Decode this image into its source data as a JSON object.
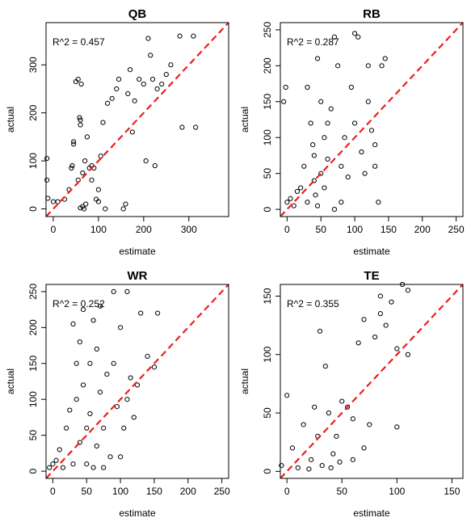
{
  "chart_data": [
    {
      "type": "scatter",
      "title": "QB",
      "xlabel": "estimate",
      "ylabel": "actual",
      "annotation": "R^2 = 0.457",
      "color": "#000000",
      "line_color": "#ee1c1c",
      "xlim": [
        -16,
        388
      ],
      "ylim": [
        -16,
        388
      ],
      "xticks": [
        0,
        100,
        200,
        300
      ],
      "yticks": [
        0,
        100,
        200,
        300
      ],
      "x": [
        -14,
        -14,
        -12,
        0,
        10,
        25,
        35,
        40,
        42,
        45,
        45,
        50,
        55,
        58,
        60,
        60,
        62,
        65,
        60,
        68,
        70,
        72,
        80,
        85,
        90,
        95,
        100,
        105,
        110,
        115,
        120,
        130,
        140,
        145,
        155,
        160,
        165,
        170,
        175,
        180,
        190,
        200,
        205,
        210,
        215,
        220,
        225,
        230,
        240,
        250,
        260,
        280,
        285,
        310,
        315,
        55,
        65,
        75,
        85,
        100
      ],
      "y": [
        105,
        60,
        22,
        15,
        15,
        20,
        40,
        85,
        90,
        135,
        140,
        265,
        270,
        190,
        185,
        175,
        260,
        5,
        2,
        0,
        100,
        10,
        85,
        90,
        85,
        20,
        15,
        110,
        180,
        0,
        220,
        230,
        250,
        270,
        0,
        10,
        240,
        290,
        160,
        225,
        270,
        260,
        100,
        355,
        320,
        270,
        90,
        250,
        260,
        280,
        300,
        360,
        170,
        360,
        170,
        60,
        75,
        150,
        60,
        40
      ]
    },
    {
      "type": "scatter",
      "title": "RB",
      "xlabel": "estimate",
      "ylabel": "actual",
      "annotation": "R^2 = 0.287",
      "color": "#000000",
      "line_color": "#ee1c1c",
      "xlim": [
        -10,
        260
      ],
      "ylim": [
        -10,
        260
      ],
      "xticks": [
        0,
        50,
        100,
        150,
        200,
        250
      ],
      "yticks": [
        0,
        50,
        100,
        150,
        200,
        250
      ],
      "x": [
        -5,
        -2,
        0,
        5,
        10,
        15,
        20,
        25,
        30,
        30,
        35,
        38,
        40,
        40,
        42,
        45,
        45,
        50,
        50,
        55,
        55,
        60,
        60,
        65,
        70,
        70,
        75,
        80,
        80,
        85,
        90,
        95,
        100,
        100,
        105,
        110,
        115,
        120,
        125,
        130,
        135,
        140,
        145,
        130,
        120
      ],
      "y": [
        150,
        170,
        10,
        15,
        5,
        25,
        30,
        60,
        10,
        170,
        120,
        90,
        75,
        40,
        20,
        5,
        210,
        150,
        50,
        100,
        30,
        70,
        120,
        140,
        0,
        240,
        200,
        60,
        10,
        100,
        45,
        170,
        245,
        120,
        240,
        80,
        50,
        200,
        110,
        60,
        10,
        200,
        210,
        90,
        150
      ]
    },
    {
      "type": "scatter",
      "title": "WR",
      "xlabel": "estimate",
      "ylabel": "actual",
      "annotation": "R^2 = 0.252",
      "color": "#000000",
      "line_color": "#ee1c1c",
      "xlim": [
        -10,
        260
      ],
      "ylim": [
        -10,
        260
      ],
      "xticks": [
        0,
        50,
        100,
        150,
        200,
        250
      ],
      "yticks": [
        0,
        50,
        100,
        150,
        200,
        250
      ],
      "x": [
        -5,
        0,
        5,
        10,
        15,
        20,
        25,
        30,
        30,
        35,
        35,
        40,
        40,
        45,
        45,
        50,
        50,
        55,
        55,
        60,
        60,
        65,
        70,
        70,
        75,
        80,
        85,
        90,
        90,
        95,
        100,
        105,
        110,
        110,
        115,
        120,
        125,
        130,
        140,
        150,
        155,
        100,
        75,
        65
      ],
      "y": [
        5,
        10,
        15,
        30,
        5,
        60,
        85,
        205,
        10,
        150,
        100,
        40,
        180,
        225,
        120,
        10,
        60,
        80,
        150,
        5,
        210,
        35,
        110,
        230,
        60,
        135,
        20,
        150,
        250,
        90,
        200,
        60,
        100,
        250,
        130,
        75,
        120,
        220,
        160,
        145,
        220,
        20,
        5,
        170
      ]
    },
    {
      "type": "scatter",
      "title": "TE",
      "xlabel": "estimate",
      "ylabel": "actual",
      "annotation": "R^2 = 0.355",
      "color": "#000000",
      "line_color": "#ee1c1c",
      "xlim": [
        -6,
        160
      ],
      "ylim": [
        -6,
        160
      ],
      "xticks": [
        0,
        50,
        100,
        150
      ],
      "yticks": [
        0,
        50,
        100,
        150
      ],
      "x": [
        -5,
        0,
        5,
        10,
        15,
        20,
        22,
        25,
        28,
        30,
        32,
        35,
        38,
        40,
        42,
        45,
        50,
        55,
        60,
        65,
        70,
        75,
        80,
        85,
        85,
        90,
        95,
        100,
        100,
        105,
        110,
        110,
        60,
        48,
        70
      ],
      "y": [
        5,
        65,
        20,
        3,
        40,
        2,
        10,
        55,
        30,
        120,
        5,
        90,
        50,
        3,
        15,
        30,
        60,
        55,
        45,
        110,
        130,
        40,
        115,
        135,
        150,
        125,
        145,
        105,
        38,
        160,
        155,
        100,
        10,
        8,
        20
      ]
    }
  ]
}
